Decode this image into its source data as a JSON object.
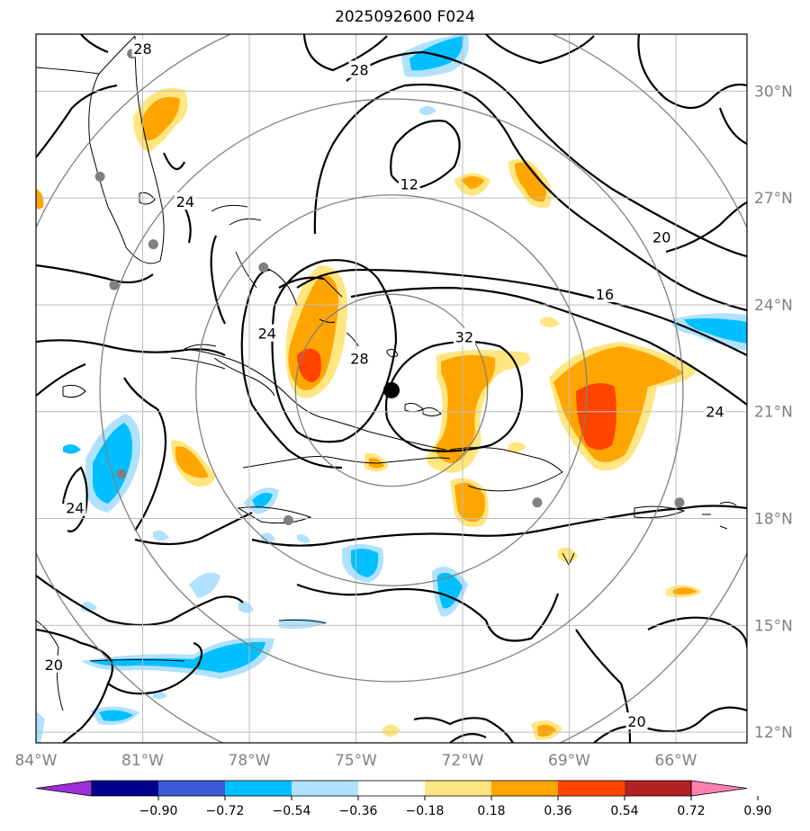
{
  "title": "2025092600 F024",
  "map": {
    "lon_min": -84,
    "lon_max": -64,
    "lat_min": 11.7,
    "lat_max": 31.6,
    "center_marker": {
      "lon": -74.0,
      "lat": 21.6
    },
    "lon_ticks": [
      {
        "value": -84,
        "label": "84°W"
      },
      {
        "value": -81,
        "label": "81°W"
      },
      {
        "value": -78,
        "label": "78°W"
      },
      {
        "value": -75,
        "label": "75°W"
      },
      {
        "value": -72,
        "label": "72°W"
      },
      {
        "value": -69,
        "label": "69°W"
      },
      {
        "value": -66,
        "label": "66°W"
      }
    ],
    "lat_ticks": [
      {
        "value": 30,
        "label": "30°N"
      },
      {
        "value": 27,
        "label": "27°N"
      },
      {
        "value": 24,
        "label": "24°N"
      },
      {
        "value": 21,
        "label": "21°N"
      },
      {
        "value": 18,
        "label": "18°N"
      },
      {
        "value": 15,
        "label": "15°N"
      },
      {
        "value": 12,
        "label": "12°N"
      }
    ],
    "range_rings_deg": [
      2.7,
      5.5,
      8.2,
      11.0
    ],
    "contour_labels": [
      {
        "text": "28",
        "lon": -81.0,
        "lat": 31.2
      },
      {
        "text": "28",
        "lon": -74.9,
        "lat": 30.6
      },
      {
        "text": "12",
        "lon": -73.5,
        "lat": 27.4
      },
      {
        "text": "20",
        "lon": -66.4,
        "lat": 25.9
      },
      {
        "text": "16",
        "lon": -68.0,
        "lat": 24.3
      },
      {
        "text": "24",
        "lon": -79.8,
        "lat": 26.9
      },
      {
        "text": "24",
        "lon": -77.5,
        "lat": 23.2
      },
      {
        "text": "28",
        "lon": -74.9,
        "lat": 22.5
      },
      {
        "text": "32",
        "lon": -71.95,
        "lat": 23.1
      },
      {
        "text": "24",
        "lon": -64.9,
        "lat": 21.0
      },
      {
        "text": "24",
        "lon": -82.9,
        "lat": 18.3
      },
      {
        "text": "20",
        "lon": -83.5,
        "lat": 13.9
      },
      {
        "text": "20",
        "lon": -67.1,
        "lat": 12.3
      }
    ],
    "station_dots": [
      {
        "lon": -81.3,
        "lat": 31.05
      },
      {
        "lon": -82.2,
        "lat": 27.6
      },
      {
        "lon": -80.7,
        "lat": 25.7
      },
      {
        "lon": -81.8,
        "lat": 24.55
      },
      {
        "lon": -77.6,
        "lat": 25.05
      },
      {
        "lon": -81.6,
        "lat": 19.25
      },
      {
        "lon": -76.9,
        "lat": 17.95
      },
      {
        "lon": -69.9,
        "lat": 18.45
      },
      {
        "lon": -65.9,
        "lat": 18.45
      }
    ]
  },
  "colorbar": {
    "colors": [
      "#9b30d6",
      "#00008b",
      "#3b5bd6",
      "#00bfff",
      "#b0e2ff",
      "#ffffff",
      "#ffe680",
      "#ffa500",
      "#ff4500",
      "#b22222",
      "#ff80b0"
    ],
    "tick_labels": [
      "−0.90",
      "−0.72",
      "−0.54",
      "−0.36",
      "−0.18",
      "0.18",
      "0.36",
      "0.54",
      "0.72",
      "0.90"
    ]
  }
}
